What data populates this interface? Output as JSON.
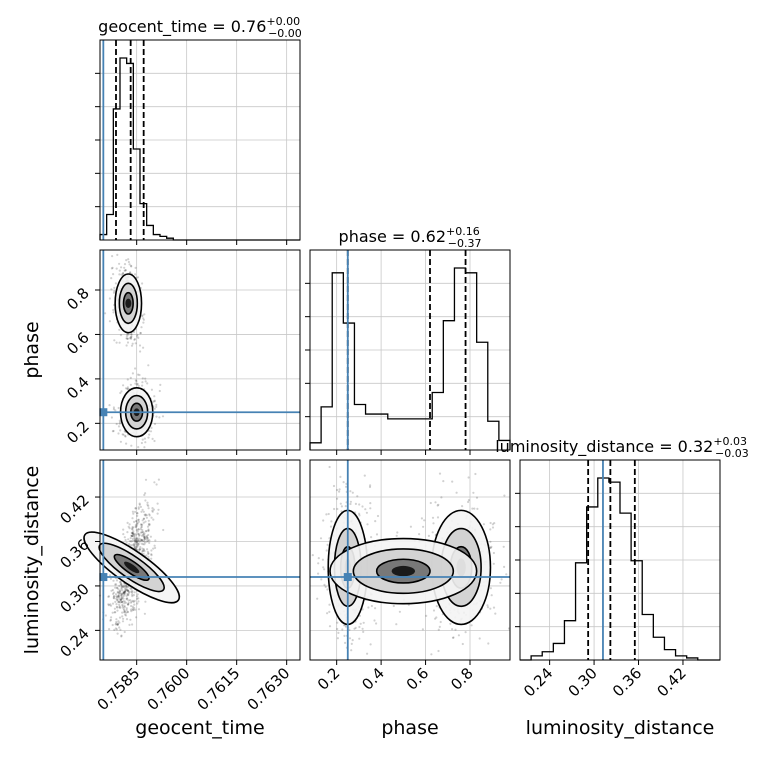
{
  "params": [
    "geocent_time",
    "phase",
    "luminosity_distance"
  ],
  "axis_labels": [
    "geocent_time",
    "phase",
    "luminosity_distance"
  ],
  "titles": [
    {
      "name": "geocent_time",
      "value": "0.76",
      "plus": "+0.00",
      "minus": "−0.00"
    },
    {
      "name": "phase",
      "value": "0.62",
      "plus": "+0.16",
      "minus": "−0.37"
    },
    {
      "name": "luminosity_distance",
      "value": "0.32",
      "plus": "+0.03",
      "minus": "−0.03"
    }
  ],
  "colors": {
    "truth": "#4682b4",
    "hist": "#000000",
    "grid": "#c8c8c8"
  },
  "chart_data": {
    "type": "corner",
    "ranges": [
      [
        0.7574,
        0.7634
      ],
      [
        0.08,
        0.98
      ],
      [
        0.2,
        0.47
      ]
    ],
    "ticks": [
      {
        "values": [
          0.7585,
          0.76,
          0.7615,
          0.763
        ],
        "labels": [
          "0.7585",
          "0.7600",
          "0.7615",
          "0.7630"
        ]
      },
      {
        "values": [
          0.2,
          0.4,
          0.6,
          0.8
        ],
        "labels": [
          "0.2",
          "0.4",
          "0.6",
          "0.8"
        ]
      },
      {
        "values": [
          0.24,
          0.3,
          0.36,
          0.42
        ],
        "labels": [
          "0.24",
          "0.30",
          "0.36",
          "0.42"
        ]
      }
    ],
    "truths": [
      0.7575,
      0.25,
      0.312
    ],
    "quantiles": [
      [
        0.75788,
        0.75832,
        0.75871
      ],
      [
        0.25,
        0.62,
        0.78
      ],
      [
        0.292,
        0.322,
        0.355
      ]
    ],
    "histograms": [
      {
        "edges": [
          0.7574,
          0.7576,
          0.7578,
          0.758,
          0.7582,
          0.7584,
          0.7586,
          0.7588,
          0.759,
          0.7592,
          0.7594,
          0.7596,
          0.7598,
          0.76,
          0.7602,
          0.7604,
          0.7606,
          0.7608,
          0.761,
          0.7612,
          0.7614,
          0.7616,
          0.7618,
          0.762,
          0.7622,
          0.7624,
          0.7626,
          0.7628,
          0.763,
          0.7632,
          0.7634
        ],
        "counts": [
          3,
          14,
          72,
          100,
          97,
          50,
          20,
          8,
          3,
          2,
          1,
          0,
          0,
          0,
          0,
          0,
          0,
          0,
          0,
          0,
          0,
          0,
          0,
          0,
          0,
          0,
          0,
          0,
          0,
          0
        ]
      },
      {
        "edges": [
          0.08,
          0.13,
          0.18,
          0.23,
          0.28,
          0.33,
          0.38,
          0.43,
          0.48,
          0.53,
          0.58,
          0.63,
          0.68,
          0.73,
          0.78,
          0.83,
          0.88,
          0.93,
          0.98
        ],
        "counts": [
          3,
          18,
          74,
          53,
          19,
          15,
          15,
          13,
          13,
          13,
          13,
          24,
          54,
          76,
          74,
          45,
          12,
          4
        ]
      },
      {
        "edges": [
          0.2,
          0.215,
          0.23,
          0.245,
          0.26,
          0.275,
          0.29,
          0.305,
          0.32,
          0.335,
          0.35,
          0.365,
          0.38,
          0.395,
          0.41,
          0.425,
          0.44,
          0.455,
          0.47
        ],
        "counts": [
          0,
          2,
          4,
          8,
          19,
          47,
          74,
          88,
          86,
          71,
          48,
          22,
          11,
          5,
          2,
          1,
          0,
          0
        ]
      }
    ]
  }
}
